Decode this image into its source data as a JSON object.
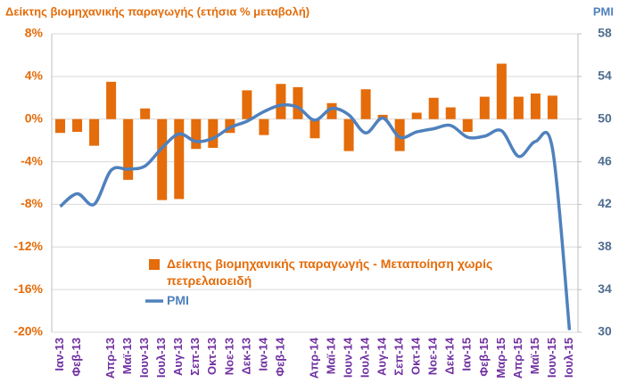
{
  "chart_data": {
    "type": "bar",
    "title": "Δείκτης βιομηχανικής παραγωγής (ετήσια % μεταβολή)",
    "y2_label": "PMI",
    "categories": [
      "Ιαν-13",
      "Φεβ-13",
      null,
      "Απρ-13",
      "Μαϊ-13",
      "Ιουν-13",
      "Ιουλ-13",
      "Αυγ-13",
      "Σεπ-13",
      "Οκτ-13",
      "Νοε-13",
      "Δεκ-13",
      "Ιαν-14",
      "Φεβ-14",
      null,
      "Απρ-14",
      "Μαϊ-14",
      "Ιουν-14",
      "Ιουλ-14",
      "Αυγ-14",
      "Σεπ-14",
      "Οκτ-14",
      "Νοε-14",
      "Δεκ-14",
      "Ιαν-15",
      "Φεβ-15",
      "Μαρ-15",
      "Απρ-15",
      "Μαϊ-15",
      "Ιουν-15",
      "Ιουλ-15"
    ],
    "series": [
      {
        "name": "Δείκτης βιομηχανικής παραγωγής - Μεταποίηση χωρίς πετρελαιοειδή",
        "type": "bar",
        "color": "#e46c0a",
        "values": [
          -1.3,
          -1.2,
          -2.5,
          3.5,
          -5.7,
          1.0,
          -7.6,
          -7.5,
          -2.8,
          -2.7,
          -1.3,
          2.7,
          -1.5,
          3.3,
          3.0,
          -1.8,
          1.5,
          -3.0,
          2.8,
          0.4,
          -3.0,
          0.6,
          2.0,
          1.1,
          -1.2,
          2.1,
          5.2,
          2.1,
          2.4,
          2.2,
          null
        ]
      },
      {
        "name": "PMI",
        "type": "line",
        "axis": "y2",
        "color": "#4f81bd",
        "values": [
          41.8,
          43.0,
          42.0,
          45.2,
          45.3,
          45.6,
          47.3,
          48.6,
          47.9,
          48.2,
          49.2,
          49.8,
          50.7,
          51.3,
          51.1,
          49.9,
          51.0,
          50.4,
          48.7,
          50.1,
          48.3,
          48.8,
          49.1,
          49.4,
          48.3,
          48.4,
          48.9,
          46.5,
          47.9,
          47.2,
          30.2
        ]
      }
    ],
    "ylim": [
      -20,
      8
    ],
    "yticks": [
      {
        "value": -20,
        "label": "-20%"
      },
      {
        "value": -16,
        "label": "-16%"
      },
      {
        "value": -12,
        "label": "-12%"
      },
      {
        "value": -8,
        "label": "-8%"
      },
      {
        "value": -4,
        "label": "-4%"
      },
      {
        "value": 0,
        "label": "0%"
      },
      {
        "value": 4,
        "label": "4%"
      },
      {
        "value": 8,
        "label": "8%"
      }
    ],
    "y2lim": [
      30,
      58
    ],
    "y2ticks": [
      30,
      34,
      38,
      42,
      46,
      50,
      54,
      58
    ],
    "grid": true
  }
}
